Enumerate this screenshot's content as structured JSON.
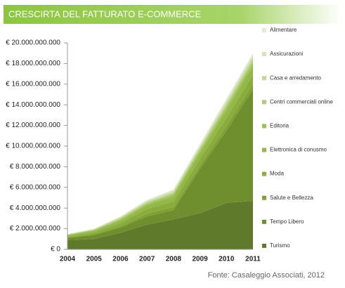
{
  "chart_data": {
    "type": "stacked-area",
    "title": "CRESCIRTA DEL FATTURATO E-COMMERCE",
    "source": "Fonte: Casaleggio Associati, 2012",
    "categories": [
      "2004",
      "2005",
      "2006",
      "2007",
      "2008",
      "2009",
      "2010",
      "2011"
    ],
    "ylim": [
      0,
      20000000000
    ],
    "yticks": [
      {
        "value": 0,
        "label": "€ 0"
      },
      {
        "value": 2000000000,
        "label": "€ 2.000.000.000"
      },
      {
        "value": 4000000000,
        "label": "€ 4.000.000.000"
      },
      {
        "value": 6000000000,
        "label": "€ 6.000.000.000"
      },
      {
        "value": 8000000000,
        "label": "€ 8.000.000.000"
      },
      {
        "value": 10000000000,
        "label": "€ 10.000.000.000"
      },
      {
        "value": 12000000000,
        "label": "€ 12.000.000.000"
      },
      {
        "value": 14000000000,
        "label": "€ 14.000.000.000"
      },
      {
        "value": 16000000000,
        "label": "€ 16.000.000.000"
      },
      {
        "value": 18000000000,
        "label": "€ 18.000.000.000"
      },
      {
        "value": 20000000000,
        "label": "€ 20.000.000.000"
      }
    ],
    "series": [
      {
        "name": "Alimentare",
        "color": "#e2ebd0",
        "values": [
          20000000,
          20000000,
          50000000,
          80000000,
          100000000,
          150000000,
          200000000,
          200000000
        ]
      },
      {
        "name": "Assicurazioni",
        "color": "#d4e2b8",
        "values": [
          30000000,
          40000000,
          70000000,
          100000000,
          130000000,
          150000000,
          200000000,
          200000000
        ]
      },
      {
        "name": "Casa e arredamento",
        "color": "#c3d89b",
        "values": [
          20000000,
          40000000,
          80000000,
          100000000,
          120000000,
          150000000,
          200000000,
          250000000
        ]
      },
      {
        "name": "Centri commerciali online",
        "color": "#b0cc7a",
        "values": [
          30000000,
          50000000,
          100000000,
          120000000,
          150000000,
          200000000,
          250000000,
          300000000
        ]
      },
      {
        "name": "Editoria",
        "color": "#9cc152",
        "values": [
          50000000,
          70000000,
          100000000,
          150000000,
          200000000,
          250000000,
          300000000,
          350000000
        ]
      },
      {
        "name": "Elettronica di conusmo",
        "color": "#93b847",
        "values": [
          100000000,
          150000000,
          250000000,
          350000000,
          450000000,
          550000000,
          700000000,
          800000000
        ]
      },
      {
        "name": "Moda",
        "color": "#8aac3c",
        "values": [
          100000000,
          150000000,
          300000000,
          450000000,
          550000000,
          600000000,
          800000000,
          900000000
        ]
      },
      {
        "name": "Salute e Bellezza",
        "color": "#7fa035",
        "values": [
          50000000,
          80000000,
          150000000,
          250000000,
          300000000,
          350000000,
          450000000,
          500000000
        ]
      },
      {
        "name": "Tempo Libero",
        "color": "#6f8f2e",
        "values": [
          200000000,
          400000000,
          500000000,
          800000000,
          900000000,
          4300000000,
          7000000000,
          10800000000
        ]
      },
      {
        "name": "Turismo",
        "color": "#5e7a2a",
        "values": [
          900000000,
          1000000000,
          1600000000,
          2400000000,
          2900000000,
          3500000000,
          4500000000,
          4700000000
        ]
      }
    ]
  }
}
